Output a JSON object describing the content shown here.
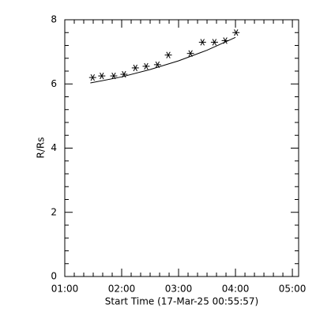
{
  "chart_data": {
    "type": "scatter",
    "xlabel": "Start Time (17-Mar-25 00:55:57)",
    "ylabel": "R/Rs",
    "x": [
      1.49,
      1.65,
      1.86,
      2.04,
      2.24,
      2.43,
      2.63,
      2.82,
      3.21,
      3.42,
      3.63,
      3.82,
      4.01
    ],
    "values": [
      6.2,
      6.25,
      6.25,
      6.3,
      6.5,
      6.55,
      6.6,
      6.9,
      6.95,
      7.3,
      7.3,
      7.35,
      7.6
    ],
    "fit": {
      "x": [
        1.45,
        2.0,
        2.5,
        3.0,
        3.5,
        4.0
      ],
      "values": [
        6.03,
        6.22,
        6.45,
        6.72,
        7.05,
        7.45
      ]
    },
    "color": "#000000",
    "xlim": [
      1,
      5.11
    ],
    "ylim": [
      0,
      8
    ],
    "xticks": [
      {
        "value": 1,
        "label": "01:00"
      },
      {
        "value": 2,
        "label": "02:00"
      },
      {
        "value": 3,
        "label": "03:00"
      },
      {
        "value": 4,
        "label": "04:00"
      },
      {
        "value": 5,
        "label": "05:00"
      }
    ],
    "yticks": [
      0,
      2,
      4,
      6,
      8
    ],
    "minor_ticks": {
      "x": 6,
      "y": 5
    }
  }
}
